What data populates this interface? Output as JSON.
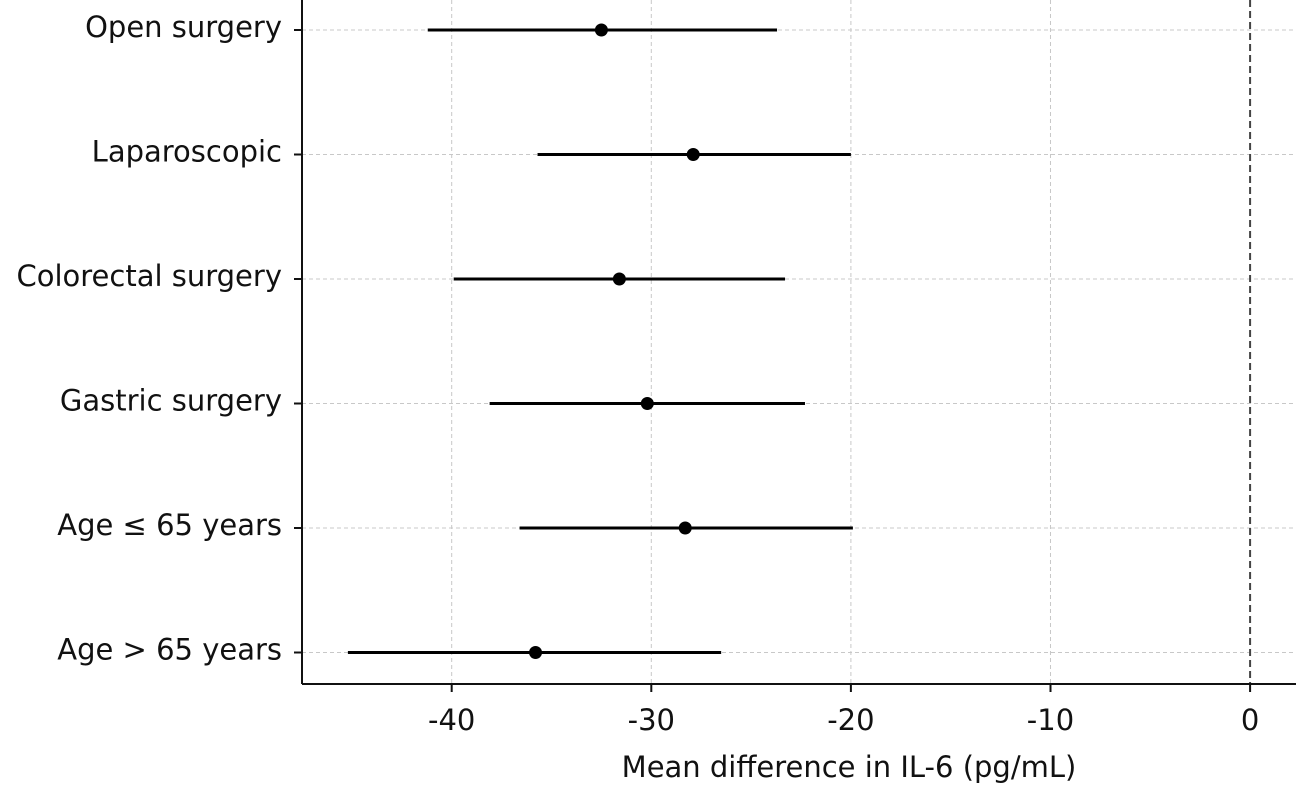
{
  "chart_data": {
    "type": "forest",
    "title": "",
    "xlabel": "Mean difference in IL-6 (pg/mL)",
    "ylabel": "",
    "xlim": [
      -47.5,
      2.3
    ],
    "xticks": [
      -40,
      -30,
      -20,
      -10,
      0
    ],
    "reference_line": 0,
    "grid": true,
    "rows": [
      {
        "label": "Open surgery",
        "estimate": -32.5,
        "lower": -41.2,
        "upper": -23.7
      },
      {
        "label": "Laparoscopic",
        "estimate": -27.9,
        "lower": -35.7,
        "upper": -20.0
      },
      {
        "label": "Colorectal surgery",
        "estimate": -31.6,
        "lower": -39.9,
        "upper": -23.3
      },
      {
        "label": "Gastric surgery",
        "estimate": -30.2,
        "lower": -38.1,
        "upper": -22.3
      },
      {
        "label": "Age ≤ 65 years",
        "estimate": -28.3,
        "lower": -36.6,
        "upper": -19.9
      },
      {
        "label": "Age > 65 years",
        "estimate": -35.8,
        "lower": -45.2,
        "upper": -26.5
      }
    ]
  }
}
